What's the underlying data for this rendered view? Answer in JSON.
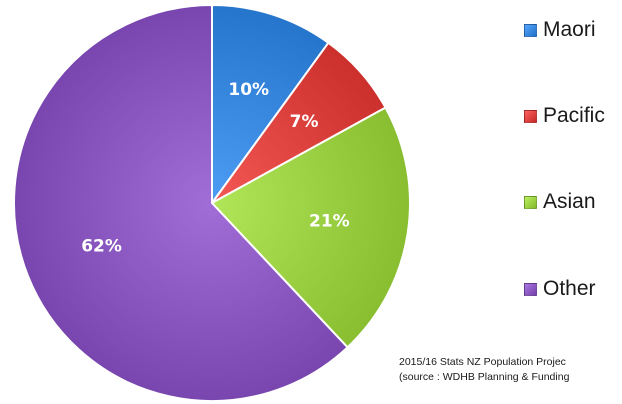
{
  "chart_data": {
    "type": "pie",
    "title": "",
    "categories": [
      "Maori",
      "Pacific",
      "Asian",
      "Other"
    ],
    "values": [
      10,
      7,
      21,
      62
    ],
    "data_labels": [
      "10%",
      "7%",
      "21%",
      "62%"
    ],
    "colors": [
      "#2f7fd6",
      "#d63a36",
      "#92c83a",
      "#8250b8"
    ],
    "legend": {
      "position": "right",
      "entries": [
        "Maori",
        "Pacific",
        "Asian",
        "Other"
      ]
    }
  },
  "source_note": {
    "line1": "2015/16 Stats NZ Population Projec",
    "line2": "(source : WDHB Planning & Funding"
  }
}
